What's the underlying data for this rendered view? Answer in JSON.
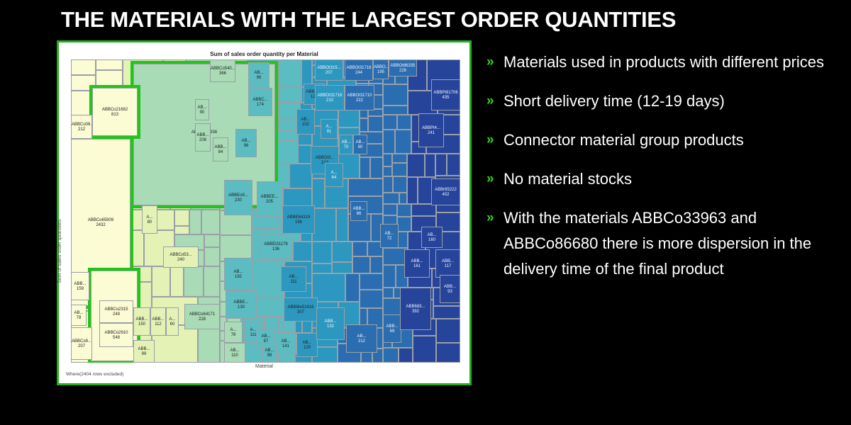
{
  "slide": {
    "title": "THE MATERIALS WITH THE LARGEST ORDER QUANTITIES"
  },
  "bullets": [
    {
      "marker": "»",
      "text": "Materials used in products with different prices"
    },
    {
      "marker": "»",
      "text": "Short delivery time (12-19 days)"
    },
    {
      "marker": "»",
      "text": "Connector material group products"
    },
    {
      "marker": "»",
      "text": "No material stocks"
    },
    {
      "marker": "»",
      "text": "With the materials ABBCo33963 and ABBCo86680 there is more dispersion in the delivery time of the final product"
    }
  ],
  "colors": {
    "background": "#000000",
    "highlight": "#22c41a",
    "bullet_marker": "#34d41f",
    "scale": [
      "#fbfbd4",
      "#e4f2b6",
      "#a8dbb6",
      "#5bbcc2",
      "#2c98c0",
      "#2a6db0",
      "#26449a",
      "#1f2a80"
    ]
  },
  "chart_data": {
    "type": "treemap",
    "title": "Sum of sales order quantity per Material",
    "xlabel": "Material",
    "ylabel": "Sum of sales order quantities",
    "footnote": "Where(2404 rows excluded)",
    "highlighted": [
      "ABBCo33936",
      "ABBCo21682",
      "ABBCo65909",
      "ABBCo86680"
    ],
    "labeled_cells": [
      {
        "name": "ABBCo33936",
        "value": 2201
      },
      {
        "name": "ABBCo21682",
        "value": 813
      },
      {
        "name": "ABBCo65909",
        "value": 2432
      },
      {
        "name": "ABBCo86680",
        "value": 608
      },
      {
        "name": "ABBCo540...",
        "value": 366
      },
      {
        "name": "ABBCo08...",
        "value": 212
      },
      {
        "name": "AB...",
        "value": 90
      },
      {
        "name": "ABB...",
        "value": 208
      },
      {
        "name": "ABB...",
        "value": 84
      },
      {
        "name": "A...",
        "value": 80
      },
      {
        "name": "ABBCo53...",
        "value": 240
      },
      {
        "name": "ABBCo2315",
        "value": 249
      },
      {
        "name": "ABBCo2910",
        "value": 548
      },
      {
        "name": "ABBCo9...",
        "value": 207
      },
      {
        "name": "ABBCo64171",
        "value": 228
      },
      {
        "name": "ABB...",
        "value": 150
      },
      {
        "name": "ABB...",
        "value": 112
      },
      {
        "name": "A...",
        "value": 60
      },
      {
        "name": "ABB...",
        "value": 99
      },
      {
        "name": "ABB...",
        "value": 159
      },
      {
        "name": "AB...",
        "value": 78
      },
      {
        "name": "AB...",
        "value": 96
      },
      {
        "name": "ABBC...",
        "value": 174
      },
      {
        "name": "AB...",
        "value": 102
      },
      {
        "name": "AB...",
        "value": 96
      },
      {
        "name": "ABBEo9...",
        "value": 230
      },
      {
        "name": "ABBEE...",
        "value": 205
      },
      {
        "name": "ABBE64319",
        "value": 156
      },
      {
        "name": "ABBEi31176",
        "value": 136
      },
      {
        "name": "AB...",
        "value": 192
      },
      {
        "name": "ABBE...",
        "value": 130
      },
      {
        "name": "AB...",
        "value": 111
      },
      {
        "name": "ABBMe51616",
        "value": 307
      },
      {
        "name": "A...",
        "value": 78
      },
      {
        "name": "A...",
        "value": 111
      },
      {
        "name": "AB...",
        "value": 110
      },
      {
        "name": "AB...",
        "value": 87
      },
      {
        "name": "AB...",
        "value": 141
      },
      {
        "name": "AB...",
        "value": 129
      },
      {
        "name": "AB...",
        "value": 98
      },
      {
        "name": "ABBOt315...",
        "value": 207
      },
      {
        "name": "ABBOt31716",
        "value": 244
      },
      {
        "name": "ABBO...",
        "value": 195
      },
      {
        "name": "ABBOt86335",
        "value": 228
      },
      {
        "name": "ABBOt...",
        "value": 120
      },
      {
        "name": "ABBOt31716",
        "value": 210
      },
      {
        "name": "ABBOt31710",
        "value": 222
      },
      {
        "name": "A...",
        "value": 91
      },
      {
        "name": "AB...",
        "value": 70
      },
      {
        "name": "AB...",
        "value": 80
      },
      {
        "name": "ABBOt3...",
        "value": 213
      },
      {
        "name": "A...",
        "value": 64
      },
      {
        "name": "ABBPt4...",
        "value": 241
      },
      {
        "name": "ABBPt81706",
        "value": 435
      },
      {
        "name": "ABB...",
        "value": 86
      },
      {
        "name": "AB...",
        "value": 212
      },
      {
        "name": "ABB...",
        "value": 132
      },
      {
        "name": "ABB...",
        "value": 69
      },
      {
        "name": "ABBr65222",
        "value": 402
      },
      {
        "name": "AB...",
        "value": 160
      },
      {
        "name": "ABB...",
        "value": 161
      },
      {
        "name": "ABB...",
        "value": 117
      },
      {
        "name": "ABB...",
        "value": 93
      },
      {
        "name": "ABB683...",
        "value": 392
      },
      {
        "name": "AB...",
        "value": 72
      }
    ]
  }
}
